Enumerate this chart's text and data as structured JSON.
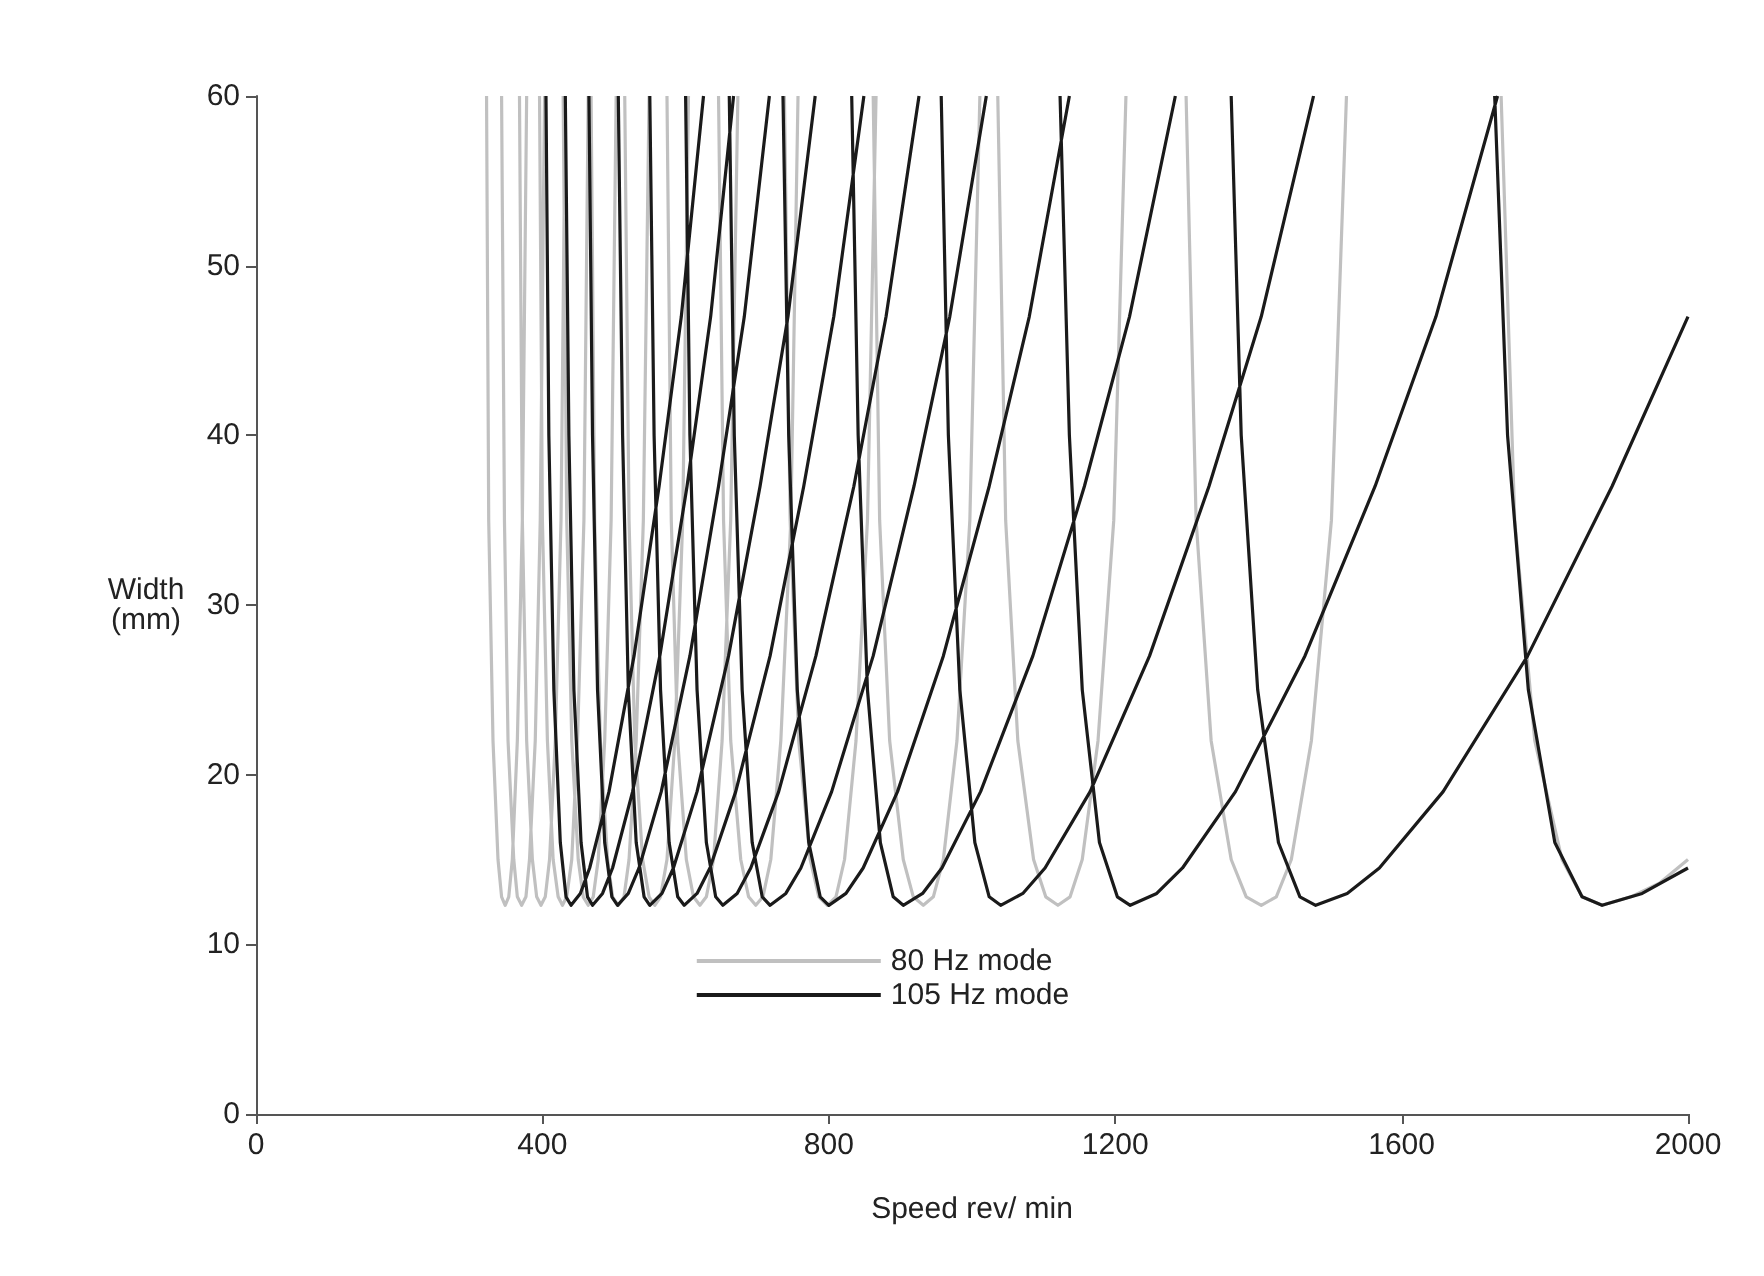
{
  "chart_data": {
    "type": "line",
    "xlabel": "Speed rev/ min",
    "ylabel": "Width\n(mm)",
    "xlim": [
      0,
      2000
    ],
    "xticks": [
      0,
      400,
      800,
      1200,
      1600,
      2000
    ],
    "ylim": [
      0,
      60
    ],
    "yticks": [
      0,
      10,
      20,
      30,
      40,
      50,
      60
    ],
    "legend": "bottom",
    "marker": "none",
    "grid": false,
    "series": [
      {
        "name": "80 Hz mode",
        "color": "#c0c0c0",
        "x": [
          322,
          325,
          331,
          338,
          343,
          348,
          353,
          358,
          365,
          372,
          378,
          null,
          343,
          347,
          352,
          360,
          365,
          371,
          377,
          382,
          390,
          397,
          403,
          null,
          368,
          372,
          378,
          386,
          392,
          398,
          404,
          410,
          418,
          426,
          432,
          null,
          396,
          400,
          407,
          415,
          422,
          428,
          434,
          441,
          449,
          458,
          464,
          null,
          429,
          434,
          441,
          450,
          457,
          464,
          471,
          478,
          487,
          496,
          503,
          null,
          468,
          473,
          481,
          491,
          498,
          506,
          514,
          521,
          531,
          541,
          549,
          null,
          515,
          521,
          529,
          540,
          549,
          557,
          565,
          574,
          585,
          596,
          604,
          null,
          574,
          580,
          589,
          601,
          611,
          620,
          629,
          639,
          651,
          663,
          673,
          null,
          646,
          653,
          663,
          677,
          688,
          698,
          708,
          719,
          733,
          747,
          757,
          null,
          738,
          746,
          758,
          774,
          786,
          798,
          810,
          822,
          838,
          854,
          866,
          null,
          862,
          871,
          885,
          904,
          918,
          932,
          946,
          960,
          979,
          997,
          1011,
          null,
          1036,
          1047,
          1064,
          1086,
          1103,
          1120,
          1137,
          1154,
          1176,
          1198,
          1215,
          null,
          1299,
          1313,
          1334,
          1362,
          1383,
          1404,
          1425,
          1446,
          1474,
          1502,
          1523,
          null,
          1739,
          1758,
          1786,
          1824,
          1852,
          1880,
          1920,
          1960,
          2000
        ],
        "values": [
          60,
          35,
          22,
          15,
          12.8,
          12.3,
          12.8,
          15,
          22,
          35,
          60,
          null,
          60,
          35,
          22,
          15,
          12.8,
          12.3,
          12.8,
          15,
          22,
          35,
          60,
          null,
          60,
          35,
          22,
          15,
          12.8,
          12.3,
          12.8,
          15,
          22,
          35,
          60,
          null,
          60,
          35,
          22,
          15,
          12.8,
          12.3,
          12.8,
          15,
          22,
          35,
          60,
          null,
          60,
          35,
          22,
          15,
          12.8,
          12.3,
          12.8,
          15,
          22,
          35,
          60,
          null,
          60,
          35,
          22,
          15,
          12.8,
          12.3,
          12.8,
          15,
          22,
          35,
          60,
          null,
          60,
          35,
          22,
          15,
          12.8,
          12.3,
          12.8,
          15,
          22,
          35,
          60,
          null,
          60,
          35,
          22,
          15,
          12.8,
          12.3,
          12.8,
          15,
          22,
          35,
          60,
          null,
          60,
          35,
          22,
          15,
          12.8,
          12.3,
          12.8,
          15,
          22,
          35,
          60,
          null,
          60,
          35,
          22,
          15,
          12.8,
          12.3,
          12.8,
          15,
          22,
          35,
          60,
          null,
          60,
          35,
          22,
          15,
          12.8,
          12.3,
          12.8,
          15,
          22,
          35,
          60,
          null,
          60,
          35,
          22,
          15,
          12.8,
          12.3,
          12.8,
          15,
          22,
          35,
          60,
          null,
          60,
          35,
          22,
          15,
          12.8,
          12.3,
          12.8,
          15,
          22,
          35,
          60,
          null,
          60,
          35,
          22,
          15,
          12.8,
          12.3,
          12.8,
          13.6,
          15
        ]
      },
      {
        "name": "105 Hz mode",
        "color": "#1a1a1a",
        "x": [
          405,
          409,
          416,
          425,
          433,
          440,
          453,
          466,
          493,
          528,
          563,
          594,
          625,
          null,
          432,
          437,
          444,
          454,
          463,
          470,
          484,
          498,
          526,
          564,
          602,
          635,
          667,
          null,
          465,
          470,
          477,
          487,
          497,
          505,
          520,
          535,
          566,
          606,
          646,
          682,
          717,
          null,
          506,
          512,
          520,
          531,
          542,
          550,
          567,
          583,
          616,
          660,
          704,
          743,
          781,
          null,
          550,
          556,
          565,
          577,
          589,
          598,
          616,
          634,
          670,
          718,
          765,
          807,
          849,
          null,
          600,
          606,
          616,
          629,
          642,
          652,
          672,
          691,
          730,
          782,
          835,
          880,
          926,
          null,
          661,
          668,
          679,
          693,
          707,
          718,
          740,
          761,
          804,
          862,
          919,
          969,
          1020,
          null,
          736,
          744,
          756,
          772,
          788,
          800,
          824,
          848,
          896,
          960,
          1024,
          1080,
          1136,
          null,
          832,
          841,
          854,
          872,
          890,
          904,
          931,
          958,
          1012,
          1085,
          1157,
          1220,
          1284,
          null,
          957,
          967,
          983,
          1004,
          1024,
          1040,
          1071,
          1102,
          1165,
          1248,
          1331,
          1404,
          1477,
          null,
          1123,
          1136,
          1154,
          1178,
          1203,
          1221,
          1258,
          1294,
          1368,
          1465,
          1563,
          1648,
          1734,
          null,
          1362,
          1376,
          1399,
          1428,
          1458,
          1480,
          1524,
          1569,
          1658,
          1776,
          1894,
          2000,
          null,
          1730,
          1748,
          1777,
          1814,
          1852,
          1880,
          1936,
          2000
        ],
        "values": [
          60,
          40,
          25,
          16,
          12.8,
          12.3,
          13,
          14.5,
          19,
          27,
          37,
          47,
          60,
          null,
          60,
          40,
          25,
          16,
          12.8,
          12.3,
          13,
          14.5,
          19,
          27,
          37,
          47,
          60,
          null,
          60,
          40,
          25,
          16,
          12.8,
          12.3,
          13,
          14.5,
          19,
          27,
          37,
          47,
          60,
          null,
          60,
          40,
          25,
          16,
          12.8,
          12.3,
          13,
          14.5,
          19,
          27,
          37,
          47,
          60,
          null,
          60,
          40,
          25,
          16,
          12.8,
          12.3,
          13,
          14.5,
          19,
          27,
          37,
          47,
          60,
          null,
          60,
          40,
          25,
          16,
          12.8,
          12.3,
          13,
          14.5,
          19,
          27,
          37,
          47,
          60,
          null,
          60,
          40,
          25,
          16,
          12.8,
          12.3,
          13,
          14.5,
          19,
          27,
          37,
          47,
          60,
          null,
          60,
          40,
          25,
          16,
          12.8,
          12.3,
          13,
          14.5,
          19,
          27,
          37,
          47,
          60,
          null,
          60,
          40,
          25,
          16,
          12.8,
          12.3,
          13,
          14.5,
          19,
          27,
          37,
          47,
          60,
          null,
          60,
          40,
          25,
          16,
          12.8,
          12.3,
          13,
          14.5,
          19,
          27,
          37,
          47,
          60,
          null,
          60,
          40,
          25,
          16,
          12.8,
          12.3,
          13,
          14.5,
          19,
          27,
          37,
          47,
          60,
          null,
          60,
          40,
          25,
          16,
          12.8,
          12.3,
          13,
          14.5,
          19,
          27,
          37,
          47,
          null,
          60,
          40,
          25,
          16,
          12.8,
          12.3,
          13,
          14.5
        ]
      }
    ]
  }
}
